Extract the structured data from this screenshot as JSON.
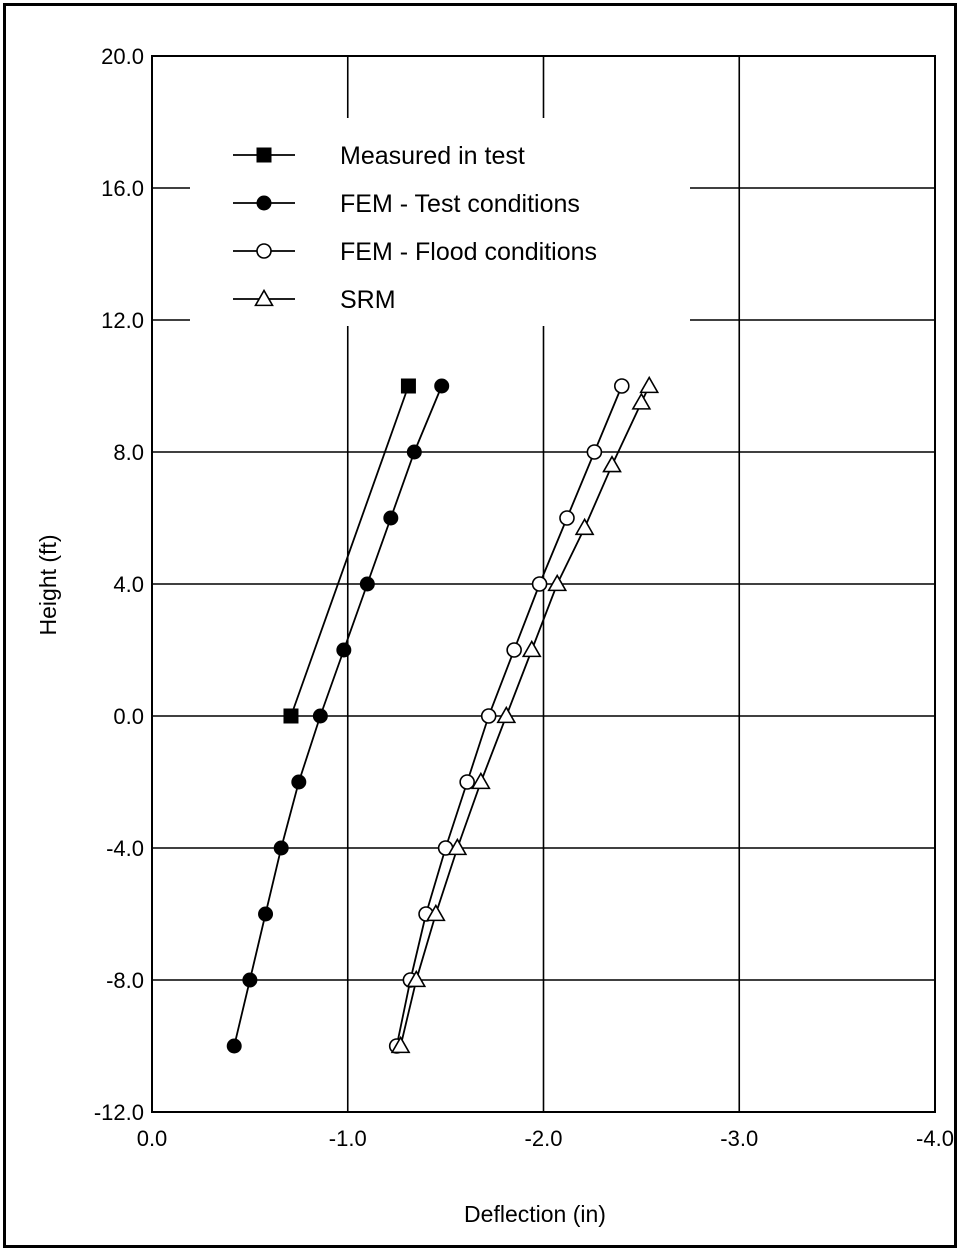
{
  "chart_data": {
    "type": "line",
    "title": "",
    "xlabel": "Deflection (in)",
    "ylabel": "Height (ft)",
    "xlim": [
      0.0,
      -4.0
    ],
    "ylim": [
      -12.0,
      20.0
    ],
    "x_ticks": [
      "0.0",
      "-1.0",
      "-2.0",
      "-3.0",
      "-4.0"
    ],
    "y_ticks": [
      "20.0",
      "16.0",
      "12.0",
      "8.0",
      "4.0",
      "0.0",
      "-4.0",
      "-8.0",
      "-12.0"
    ],
    "grid": true,
    "legend_position": "top-left",
    "series": [
      {
        "name": "Measured in test",
        "marker": "filled-square",
        "points": [
          [
            -0.71,
            0.0
          ],
          [
            -1.31,
            10.0
          ]
        ]
      },
      {
        "name": "FEM - Test conditions",
        "marker": "filled-circle",
        "points": [
          [
            -0.42,
            -10.0
          ],
          [
            -0.5,
            -8.0
          ],
          [
            -0.58,
            -6.0
          ],
          [
            -0.66,
            -4.0
          ],
          [
            -0.75,
            -2.0
          ],
          [
            -0.86,
            0.0
          ],
          [
            -0.98,
            2.0
          ],
          [
            -1.1,
            4.0
          ],
          [
            -1.22,
            6.0
          ],
          [
            -1.34,
            8.0
          ],
          [
            -1.48,
            10.0
          ]
        ]
      },
      {
        "name": "FEM - Flood conditions",
        "marker": "open-circle",
        "points": [
          [
            -1.25,
            -10.0
          ],
          [
            -1.32,
            -8.0
          ],
          [
            -1.4,
            -6.0
          ],
          [
            -1.5,
            -4.0
          ],
          [
            -1.61,
            -2.0
          ],
          [
            -1.72,
            0.0
          ],
          [
            -1.85,
            2.0
          ],
          [
            -1.98,
            4.0
          ],
          [
            -2.12,
            6.0
          ],
          [
            -2.26,
            8.0
          ],
          [
            -2.4,
            10.0
          ]
        ]
      },
      {
        "name": "SRM",
        "marker": "open-triangle",
        "points": [
          [
            -1.27,
            -10.0
          ],
          [
            -1.35,
            -8.0
          ],
          [
            -1.45,
            -6.0
          ],
          [
            -1.56,
            -4.0
          ],
          [
            -1.68,
            -2.0
          ],
          [
            -1.81,
            0.0
          ],
          [
            -1.94,
            2.0
          ],
          [
            -2.07,
            4.0
          ],
          [
            -2.21,
            5.7
          ],
          [
            -2.35,
            7.6
          ],
          [
            -2.5,
            9.5
          ],
          [
            -2.54,
            10.0
          ]
        ]
      }
    ]
  }
}
